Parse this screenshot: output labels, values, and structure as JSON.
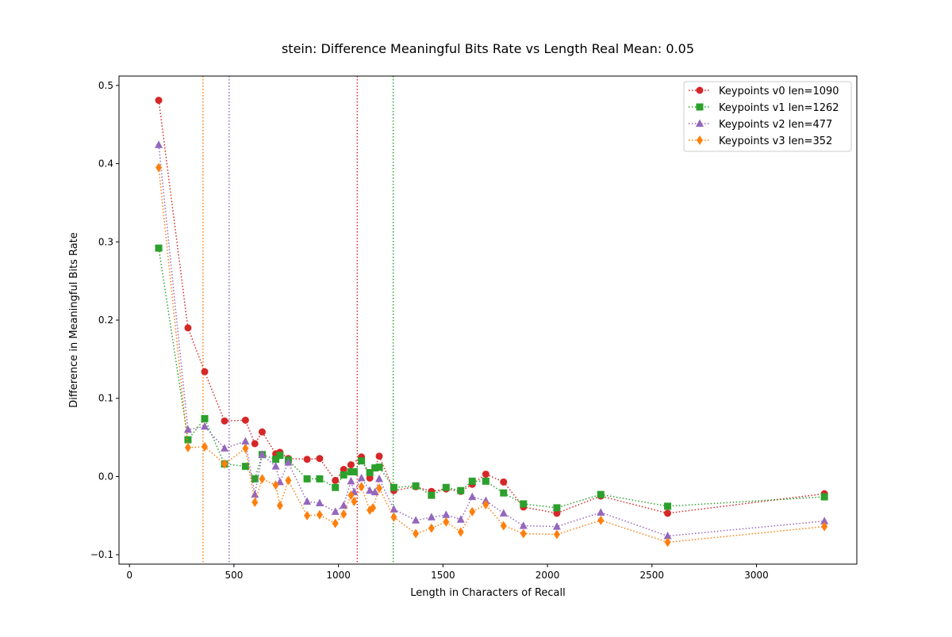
{
  "chart_data": {
    "type": "line",
    "title": "stein: Difference Meaningful Bits Rate vs Length Real Mean: 0.05",
    "xlabel": "Length in Characters of Recall",
    "ylabel": "Difference in Meaningful Bits Rate",
    "xlim": [
      -50,
      3480
    ],
    "ylim": [
      -0.112,
      0.512
    ],
    "xticks": [
      0,
      500,
      1000,
      1500,
      2000,
      2500,
      3000
    ],
    "yticks": [
      -0.1,
      0.0,
      0.1,
      0.2,
      0.3,
      0.4,
      0.5
    ],
    "xtick_labels": [
      "0",
      "500",
      "1000",
      "1500",
      "2000",
      "2500",
      "3000"
    ],
    "ytick_labels": [
      "−0.1",
      "0.0",
      "0.1",
      "0.2",
      "0.3",
      "0.4",
      "0.5"
    ],
    "grid": false,
    "legend_position": "top-right",
    "series": [
      {
        "name": "Keypoints v0 len=1090",
        "color": "#d62728",
        "marker": "circle",
        "vline": 1090,
        "x": [
          140,
          280,
          360,
          455,
          555,
          600,
          635,
          700,
          720,
          760,
          850,
          910,
          985,
          1025,
          1060,
          1110,
          1150,
          1175,
          1195,
          1265,
          1370,
          1445,
          1515,
          1585,
          1640,
          1705,
          1790,
          1885,
          2045,
          2255,
          2575,
          3325
        ],
        "y": [
          0.481,
          0.19,
          0.134,
          0.071,
          0.072,
          0.042,
          0.057,
          0.029,
          0.031,
          0.023,
          0.022,
          0.023,
          -0.005,
          0.009,
          0.015,
          0.025,
          -0.002,
          0.011,
          0.026,
          -0.018,
          -0.013,
          -0.019,
          -0.016,
          -0.019,
          -0.01,
          0.003,
          -0.007,
          -0.039,
          -0.047,
          -0.025,
          -0.047,
          -0.022
        ]
      },
      {
        "name": "Keypoints v1 len=1262",
        "color": "#2ca02c",
        "marker": "square",
        "vline": 1262,
        "x": [
          140,
          280,
          360,
          455,
          555,
          600,
          635,
          700,
          720,
          760,
          850,
          910,
          985,
          1025,
          1060,
          1075,
          1110,
          1150,
          1175,
          1195,
          1265,
          1370,
          1445,
          1515,
          1585,
          1640,
          1705,
          1790,
          1885,
          2045,
          2255,
          2575,
          3325
        ],
        "y": [
          0.292,
          0.047,
          0.074,
          0.016,
          0.013,
          -0.003,
          0.028,
          0.022,
          0.027,
          0.021,
          -0.003,
          -0.003,
          -0.014,
          0.002,
          0.006,
          0.006,
          0.02,
          0.005,
          0.011,
          0.012,
          -0.014,
          -0.012,
          -0.024,
          -0.014,
          -0.018,
          -0.006,
          -0.006,
          -0.021,
          -0.035,
          -0.04,
          -0.023,
          -0.038,
          -0.026
        ]
      },
      {
        "name": "Keypoints v2 len=477",
        "color": "#9467bd",
        "marker": "triangle",
        "vline": 477,
        "x": [
          140,
          280,
          360,
          455,
          555,
          600,
          635,
          700,
          720,
          760,
          850,
          910,
          985,
          1025,
          1060,
          1075,
          1110,
          1150,
          1175,
          1195,
          1265,
          1370,
          1445,
          1515,
          1585,
          1640,
          1705,
          1790,
          1885,
          2045,
          2255,
          2575,
          3325
        ],
        "y": [
          0.424,
          0.06,
          0.064,
          0.036,
          0.045,
          -0.023,
          0.028,
          0.013,
          -0.007,
          0.018,
          -0.032,
          -0.034,
          -0.045,
          -0.037,
          -0.006,
          -0.02,
          -0.002,
          -0.018,
          -0.02,
          -0.003,
          -0.042,
          -0.056,
          -0.052,
          -0.049,
          -0.055,
          -0.026,
          -0.031,
          -0.047,
          -0.063,
          -0.064,
          -0.046,
          -0.076,
          -0.057
        ]
      },
      {
        "name": "Keypoints v3 len=352",
        "color": "#ff7f0e",
        "marker": "diamond",
        "vline": 352,
        "x": [
          140,
          280,
          360,
          455,
          555,
          600,
          635,
          700,
          720,
          760,
          850,
          910,
          985,
          1025,
          1060,
          1075,
          1110,
          1150,
          1165,
          1195,
          1265,
          1370,
          1445,
          1515,
          1585,
          1640,
          1705,
          1790,
          1885,
          2045,
          2255,
          2575,
          3325
        ],
        "y": [
          0.395,
          0.037,
          0.038,
          0.016,
          0.036,
          -0.033,
          -0.003,
          -0.011,
          -0.037,
          -0.005,
          -0.05,
          -0.049,
          -0.06,
          -0.048,
          -0.024,
          -0.032,
          -0.013,
          -0.043,
          -0.04,
          -0.015,
          -0.052,
          -0.073,
          -0.066,
          -0.058,
          -0.071,
          -0.045,
          -0.036,
          -0.063,
          -0.073,
          -0.074,
          -0.056,
          -0.084,
          -0.064
        ]
      }
    ]
  }
}
